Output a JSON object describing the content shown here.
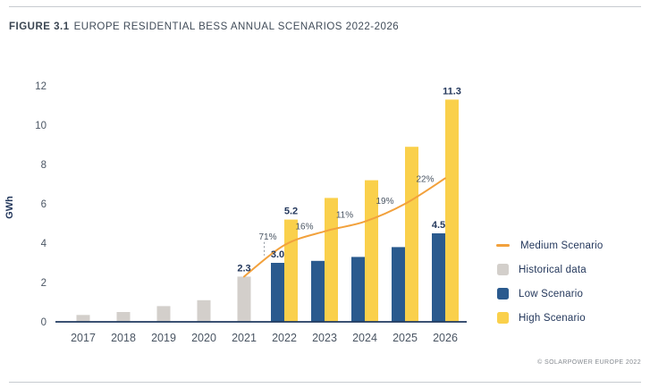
{
  "figure": {
    "label": "FIGURE 3.1",
    "title": "EUROPE RESIDENTIAL BESS ANNUAL SCENARIOS 2022-2026"
  },
  "footer": {
    "credit": "© SOLARPOWER EUROPE 2022"
  },
  "colors": {
    "historical": "#d3cfcb",
    "low": "#2a5a8e",
    "high": "#fad04b",
    "medium": "#f2a13c",
    "axis": "#1f3a5f",
    "label_text": "#24385c",
    "muted_text": "#4a5563",
    "dash": "#8e959e"
  },
  "chart_data": {
    "type": "bar",
    "title": "Europe residential BESS annual scenarios 2022-2026",
    "ylabel": "GWh",
    "xlabel": "",
    "ylim": [
      0,
      12
    ],
    "yticks": [
      0,
      2,
      4,
      6,
      8,
      10,
      12
    ],
    "grid": false,
    "legend_position": "right",
    "categories": [
      "2017",
      "2018",
      "2019",
      "2020",
      "2021",
      "2022",
      "2023",
      "2024",
      "2025",
      "2026"
    ],
    "series": [
      {
        "name": "Historical data",
        "type": "bar",
        "align": "center",
        "color_key": "historical",
        "values": [
          0.35,
          0.5,
          0.8,
          1.1,
          2.3,
          null,
          null,
          null,
          null,
          null
        ],
        "labels": {
          "4": "2.3"
        }
      },
      {
        "name": "Low Scenario",
        "type": "bar",
        "align": "left",
        "color_key": "low",
        "values": [
          null,
          null,
          null,
          null,
          null,
          3.0,
          3.1,
          3.3,
          3.8,
          4.5
        ],
        "labels": {
          "5": "3.0",
          "9": "4.5"
        }
      },
      {
        "name": "High Scenario",
        "type": "bar",
        "align": "right",
        "color_key": "high",
        "values": [
          null,
          null,
          null,
          null,
          null,
          5.2,
          6.3,
          7.2,
          8.9,
          11.3
        ],
        "labels": {
          "5": "5.2",
          "9": "11.3"
        }
      },
      {
        "name": "Medium Scenario",
        "type": "line",
        "color_key": "medium",
        "values": [
          null,
          null,
          null,
          null,
          2.3,
          3.9,
          4.6,
          5.1,
          6.0,
          7.3
        ],
        "growth_labels": [
          {
            "text": "71%",
            "dashed": true
          },
          {
            "text": "16%"
          },
          {
            "text": "11%"
          },
          {
            "text": "19%"
          },
          {
            "text": "22%"
          }
        ]
      }
    ],
    "legend": [
      {
        "label": "Medium Scenario",
        "marker": "line",
        "color_key": "medium"
      },
      {
        "label": "Historical data",
        "marker": "square",
        "color_key": "historical"
      },
      {
        "label": "Low Scenario",
        "marker": "square",
        "color_key": "low"
      },
      {
        "label": "High Scenario",
        "marker": "square",
        "color_key": "high"
      }
    ]
  }
}
